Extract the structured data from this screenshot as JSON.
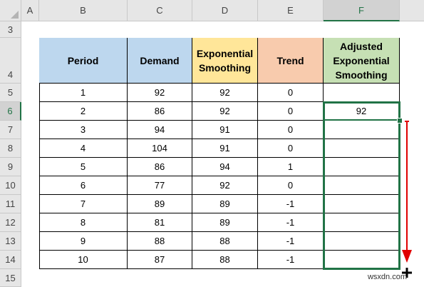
{
  "columns": [
    "A",
    "B",
    "C",
    "D",
    "E",
    "F"
  ],
  "rows": [
    "3",
    "4",
    "5",
    "6",
    "7",
    "8",
    "9",
    "10",
    "11",
    "12",
    "13",
    "14",
    "15"
  ],
  "table": {
    "headers": [
      "Period",
      "Demand",
      "Exponential Smoothing",
      "Trend",
      "Adjusted Exponential Smoothing"
    ],
    "data": [
      [
        "1",
        "92",
        "92",
        "0",
        ""
      ],
      [
        "2",
        "86",
        "92",
        "0",
        "92"
      ],
      [
        "3",
        "94",
        "91",
        "0",
        ""
      ],
      [
        "4",
        "104",
        "91",
        "0",
        ""
      ],
      [
        "5",
        "86",
        "94",
        "1",
        ""
      ],
      [
        "6",
        "77",
        "92",
        "0",
        ""
      ],
      [
        "7",
        "89",
        "89",
        "-1",
        ""
      ],
      [
        "8",
        "81",
        "89",
        "-1",
        ""
      ],
      [
        "9",
        "88",
        "88",
        "-1",
        ""
      ],
      [
        "10",
        "87",
        "88",
        "-1",
        ""
      ]
    ]
  },
  "colors": {
    "period_header": "#bdd7ee",
    "demand_header": "#bdd7ee",
    "smoothing_header": "#ffe699",
    "trend_header": "#f8cbad",
    "adjusted_header": "#c6e0b4",
    "selection": "#217346",
    "arrow": "#e00000"
  },
  "selected_column": "F",
  "selected_row": "6",
  "active_cell": "F6",
  "selection_range": "F6:F14",
  "watermark": "wsxdn.com"
}
